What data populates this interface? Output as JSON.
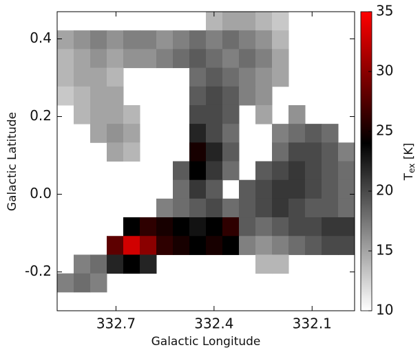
{
  "chart_data": {
    "type": "heatmap",
    "x_label": "Galactic Longitude",
    "y_label": "Galactic Latitude",
    "colorbar_label": [
      "T",
      "ex",
      "[K]"
    ],
    "xlim": [
      332.88,
      331.97
    ],
    "ylim": [
      -0.3,
      0.47
    ],
    "xticks": [
      332.7,
      332.4,
      332.1
    ],
    "yticks": [
      -0.2,
      {
        "value": 0,
        "label": "0.0"
      },
      0.2,
      0.4
    ],
    "zlim": [
      10,
      35
    ],
    "zticks": [
      10,
      15,
      20,
      25,
      30,
      35
    ],
    "colormap": [
      {
        "value": 10,
        "color": "#ffffff"
      },
      {
        "value": 24,
        "color": "#000000"
      },
      {
        "value": 35,
        "color": "#ff0000"
      }
    ],
    "z": [
      [
        null,
        null,
        null,
        null,
        null,
        null,
        null,
        null,
        null,
        14,
        15,
        15,
        14,
        13,
        null,
        null,
        null,
        null
      ],
      [
        15,
        16,
        17,
        16,
        17,
        17,
        16,
        17,
        18,
        17,
        18,
        17,
        16,
        14,
        null,
        null,
        null,
        null
      ],
      [
        14,
        15,
        16,
        15,
        16,
        16,
        17,
        18,
        19,
        18,
        17,
        18,
        17,
        15,
        null,
        null,
        null,
        null
      ],
      [
        14,
        15,
        15,
        14,
        null,
        null,
        null,
        null,
        18,
        19,
        18,
        17,
        16,
        15,
        null,
        null,
        null,
        null
      ],
      [
        13,
        14,
        15,
        15,
        null,
        null,
        null,
        null,
        19,
        20,
        19,
        17,
        16,
        null,
        null,
        null,
        null,
        null
      ],
      [
        null,
        14,
        15,
        15,
        14,
        null,
        null,
        null,
        20,
        20,
        19,
        null,
        15,
        null,
        16,
        null,
        null,
        null
      ],
      [
        null,
        null,
        15,
        16,
        15,
        null,
        null,
        null,
        22,
        20,
        18,
        null,
        null,
        17,
        18,
        19,
        18,
        null
      ],
      [
        null,
        null,
        null,
        15,
        14,
        null,
        null,
        null,
        25,
        22,
        19,
        null,
        null,
        18,
        20,
        20,
        19,
        17
      ],
      [
        null,
        null,
        null,
        null,
        null,
        null,
        null,
        19,
        24,
        21,
        18,
        null,
        19,
        20,
        21,
        20,
        19,
        18
      ],
      [
        null,
        null,
        null,
        null,
        null,
        null,
        null,
        18,
        21,
        19,
        null,
        19,
        20,
        21,
        21,
        20,
        19,
        18
      ],
      [
        null,
        null,
        null,
        null,
        null,
        null,
        17,
        18,
        19,
        20,
        18,
        19,
        20,
        21,
        20,
        19,
        19,
        18
      ],
      [
        null,
        null,
        null,
        null,
        24,
        26,
        25,
        24,
        23,
        24,
        26,
        19,
        18,
        19,
        20,
        20,
        21,
        21
      ],
      [
        null,
        null,
        null,
        28,
        33,
        30,
        26,
        25,
        24,
        25,
        24,
        17,
        16,
        17,
        18,
        19,
        20,
        20
      ],
      [
        null,
        17,
        18,
        22,
        24,
        22,
        null,
        null,
        null,
        null,
        null,
        null,
        14,
        14,
        null,
        null,
        null,
        null
      ],
      [
        17,
        18,
        17,
        null,
        null,
        null,
        null,
        null,
        null,
        null,
        null,
        null,
        null,
        null,
        null,
        null,
        null,
        null
      ],
      [
        null,
        null,
        null,
        null,
        null,
        null,
        null,
        null,
        null,
        null,
        null,
        null,
        null,
        null,
        null,
        null,
        null,
        null
      ]
    ]
  }
}
